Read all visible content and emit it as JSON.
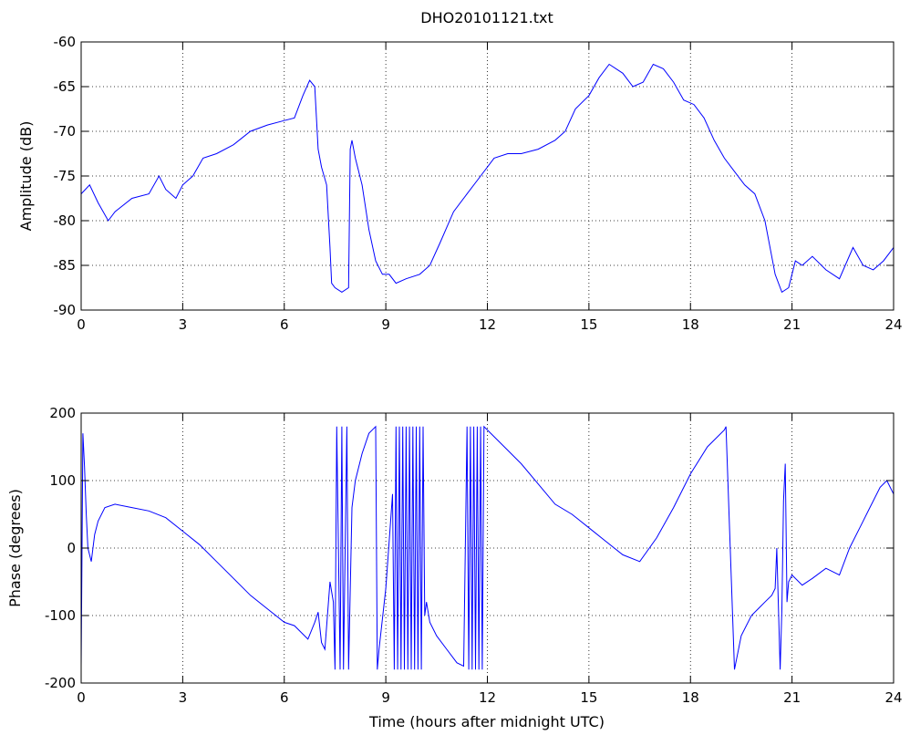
{
  "figure": {
    "title": "DHO20101121.txt"
  },
  "chart_data": [
    {
      "type": "line",
      "title": "DHO20101121.txt",
      "xlabel": "",
      "ylabel": "Amplitude (dB)",
      "xlim": [
        0,
        24
      ],
      "ylim": [
        -90,
        -60
      ],
      "xticks": [
        0,
        3,
        6,
        9,
        12,
        15,
        18,
        21,
        24
      ],
      "yticks": [
        -90,
        -85,
        -80,
        -75,
        -70,
        -65,
        -60
      ],
      "grid": true,
      "color": "#0000ff",
      "series": [
        {
          "x": [
            0,
            0.25,
            0.5,
            0.8,
            1.0,
            1.5,
            2.0,
            2.3,
            2.5,
            2.8,
            3.0,
            3.3,
            3.6,
            4.0,
            4.5,
            5.0,
            5.5,
            6.0,
            6.3,
            6.55,
            6.75,
            6.9,
            7.0,
            7.1,
            7.25,
            7.35,
            7.4,
            7.5,
            7.7,
            7.9,
            7.95,
            8.0,
            8.1,
            8.3,
            8.5,
            8.7,
            8.9,
            9.1,
            9.3,
            9.6,
            10.0,
            10.3,
            10.6,
            11.0,
            11.4,
            11.8,
            12.2,
            12.6,
            13.0,
            13.5,
            14.0,
            14.3,
            14.6,
            15.0,
            15.3,
            15.6,
            16.0,
            16.3,
            16.6,
            16.9,
            17.2,
            17.5,
            17.8,
            18.1,
            18.4,
            18.7,
            19.0,
            19.3,
            19.6,
            19.9,
            20.2,
            20.5,
            20.7,
            20.9,
            21.1,
            21.3,
            21.6,
            22.0,
            22.4,
            22.8,
            23.1,
            23.4,
            23.7,
            24.0
          ],
          "y": [
            -77,
            -76,
            -78,
            -80,
            -79,
            -77.5,
            -77,
            -75,
            -76.5,
            -77.5,
            -76,
            -75,
            -73,
            -72.5,
            -71.5,
            -70,
            -69.3,
            -68.8,
            -68.5,
            -66,
            -64.3,
            -65,
            -72,
            -74,
            -76,
            -83,
            -87,
            -87.5,
            -88,
            -87.5,
            -72,
            -71,
            -73,
            -76,
            -81,
            -84.5,
            -86,
            -86,
            -87,
            -86.5,
            -86,
            -85,
            -82.5,
            -79,
            -77,
            -75,
            -73,
            -72.5,
            -72.5,
            -72,
            -71,
            -70,
            -67.5,
            -66,
            -64,
            -62.5,
            -63.5,
            -65,
            -64.5,
            -62.5,
            -63,
            -64.5,
            -66.5,
            -67,
            -68.5,
            -71,
            -73,
            -74.5,
            -76,
            -77,
            -80,
            -86,
            -88,
            -87.5,
            -84.5,
            -85,
            -84,
            -85.5,
            -86.5,
            -83,
            -85,
            -85.5,
            -84.5,
            -83
          ]
        }
      ]
    },
    {
      "type": "line",
      "title": "",
      "xlabel": "Time (hours after midnight UTC)",
      "ylabel": "Phase (degrees)",
      "xlim": [
        0,
        24
      ],
      "ylim": [
        -200,
        200
      ],
      "xticks": [
        0,
        3,
        6,
        9,
        12,
        15,
        18,
        21,
        24
      ],
      "yticks": [
        -200,
        -100,
        0,
        100,
        200
      ],
      "grid": true,
      "color": "#0000ff",
      "series": [
        {
          "x": [
            0,
            0.05,
            0.1,
            0.15,
            0.2,
            0.3,
            0.4,
            0.5,
            0.7,
            1.0,
            1.5,
            2.0,
            2.5,
            3.0,
            3.5,
            4.0,
            4.5,
            5.0,
            5.5,
            6.0,
            6.3,
            6.5,
            6.7,
            6.9,
            7.0,
            7.1,
            7.2,
            7.35,
            7.45,
            7.5,
            7.55,
            7.65,
            7.7,
            7.75,
            7.85,
            7.9,
            8.0,
            8.1,
            8.3,
            8.5,
            8.7,
            8.75,
            8.8,
            9.0,
            9.2,
            9.25,
            9.3,
            9.35,
            9.4,
            9.45,
            9.5,
            9.55,
            9.6,
            9.65,
            9.7,
            9.75,
            9.8,
            9.85,
            9.9,
            9.95,
            10.0,
            10.05,
            10.1,
            10.15,
            10.2,
            10.3,
            10.5,
            10.8,
            11.1,
            11.3,
            11.4,
            11.45,
            11.5,
            11.55,
            11.6,
            11.65,
            11.7,
            11.75,
            11.8,
            11.85,
            11.9,
            12.0,
            12.5,
            13.0,
            13.5,
            14.0,
            14.5,
            15.0,
            15.5,
            16.0,
            16.5,
            17.0,
            17.5,
            18.0,
            18.5,
            19.0,
            19.05,
            19.3,
            19.5,
            19.8,
            20.0,
            20.2,
            20.4,
            20.5,
            20.55,
            20.65,
            20.7,
            20.75,
            20.8,
            20.85,
            20.9,
            21.0,
            21.3,
            21.6,
            22.0,
            22.4,
            22.7,
            23.0,
            23.3,
            23.6,
            23.8,
            24.0
          ],
          "y": [
            -175,
            170,
            120,
            50,
            0,
            -20,
            20,
            40,
            60,
            65,
            60,
            55,
            45,
            25,
            5,
            -20,
            -45,
            -70,
            -90,
            -110,
            -115,
            -125,
            -135,
            -110,
            -95,
            -140,
            -150,
            -50,
            -80,
            -180,
            180,
            -180,
            180,
            -180,
            180,
            -180,
            60,
            100,
            140,
            170,
            180,
            -180,
            -150,
            -60,
            80,
            -180,
            180,
            -180,
            180,
            -180,
            180,
            -180,
            180,
            -180,
            180,
            -180,
            180,
            -180,
            180,
            -180,
            180,
            -180,
            180,
            -100,
            -80,
            -110,
            -130,
            -150,
            -170,
            -175,
            180,
            -180,
            180,
            -180,
            180,
            -180,
            180,
            -180,
            180,
            -180,
            180,
            175,
            150,
            125,
            95,
            65,
            50,
            30,
            10,
            -10,
            -20,
            15,
            60,
            110,
            150,
            175,
            180,
            -180,
            -130,
            -100,
            -90,
            -80,
            -70,
            -60,
            0,
            -180,
            -90,
            70,
            125,
            -80,
            -50,
            -40,
            -55,
            -45,
            -30,
            -40,
            0,
            30,
            60,
            90,
            100,
            80
          ]
        }
      ]
    }
  ]
}
